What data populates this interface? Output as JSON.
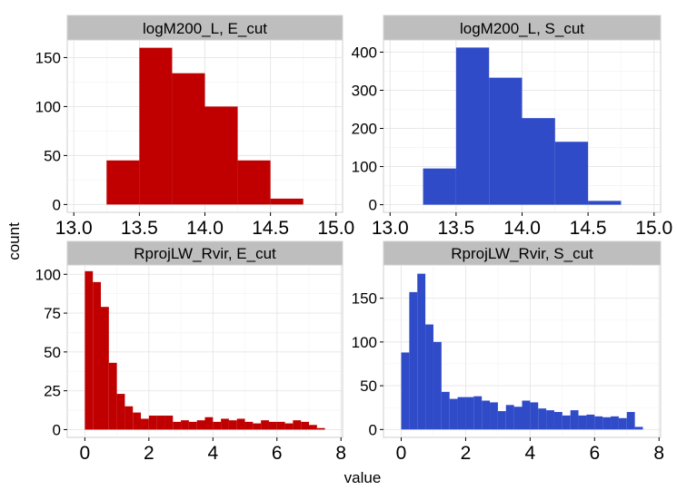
{
  "figure": {
    "xlabel": "value",
    "ylabel": "count"
  },
  "colors": {
    "E_cut": "#c00000",
    "S_cut": "#2f4bc8",
    "strip_fill": "#bebebe",
    "panel_bg": "#ffffff",
    "grid_major": "#e5e5e5",
    "grid_minor": "#f2f2f2"
  },
  "chart_data": [
    {
      "type": "bar",
      "title": "logM200_L, E_cut",
      "color_key": "E_cut",
      "binwidth": 0.25,
      "bins_start": [
        13.25,
        13.5,
        13.75,
        14.0,
        14.25,
        14.5
      ],
      "values": [
        45,
        160,
        134,
        100,
        45,
        6
      ],
      "xlim": [
        12.95,
        15.05
      ],
      "ylim": [
        -8,
        168
      ],
      "xticks": [
        13.0,
        13.5,
        14.0,
        14.5,
        15.0
      ],
      "xtick_labels": [
        "13.0",
        "13.5",
        "14.0",
        "14.5",
        "15.0"
      ],
      "yticks": [
        0,
        50,
        100,
        150
      ],
      "ytick_labels": [
        "0",
        "50",
        "100",
        "150"
      ]
    },
    {
      "type": "bar",
      "title": "logM200_L, S_cut",
      "color_key": "S_cut",
      "binwidth": 0.25,
      "bins_start": [
        13.25,
        13.5,
        13.75,
        14.0,
        14.25,
        14.5
      ],
      "values": [
        95,
        412,
        333,
        227,
        165,
        10
      ],
      "xlim": [
        12.95,
        15.05
      ],
      "ylim": [
        -20,
        432
      ],
      "xticks": [
        13.0,
        13.5,
        14.0,
        14.5,
        15.0
      ],
      "xtick_labels": [
        "13.0",
        "13.5",
        "14.0",
        "14.5",
        "15.0"
      ],
      "yticks": [
        0,
        100,
        200,
        300,
        400
      ],
      "ytick_labels": [
        "0",
        "100",
        "200",
        "300",
        "400"
      ]
    },
    {
      "type": "bar",
      "title": "RprojLW_Rvir, E_cut",
      "color_key": "E_cut",
      "binwidth": 0.25,
      "bins_start": [
        0.0,
        0.25,
        0.5,
        0.75,
        1.0,
        1.25,
        1.5,
        1.75,
        2.0,
        2.25,
        2.5,
        2.75,
        3.0,
        3.25,
        3.5,
        3.75,
        4.0,
        4.25,
        4.5,
        4.75,
        5.0,
        5.25,
        5.5,
        5.75,
        6.0,
        6.25,
        6.5,
        6.75,
        7.0,
        7.25
      ],
      "values": [
        102,
        95,
        79,
        43,
        23,
        15,
        11,
        7,
        9,
        9,
        9,
        5,
        6,
        5,
        6,
        8,
        5,
        7,
        6,
        7,
        5,
        4,
        6,
        5,
        5,
        4,
        6,
        5,
        3,
        1
      ],
      "xlim": [
        -0.55,
        8.05
      ],
      "ylim": [
        -5,
        106
      ],
      "xticks": [
        0,
        2,
        4,
        6,
        8
      ],
      "xtick_labels": [
        "0",
        "2",
        "4",
        "6",
        "8"
      ],
      "yticks": [
        0,
        25,
        50,
        75,
        100
      ],
      "ytick_labels": [
        "0",
        "25",
        "50",
        "75",
        "100"
      ]
    },
    {
      "type": "bar",
      "title": "RprojLW_Rvir, S_cut",
      "color_key": "S_cut",
      "binwidth": 0.25,
      "bins_start": [
        0.0,
        0.25,
        0.5,
        0.75,
        1.0,
        1.25,
        1.5,
        1.75,
        2.0,
        2.25,
        2.5,
        2.75,
        3.0,
        3.25,
        3.5,
        3.75,
        4.0,
        4.25,
        4.5,
        4.75,
        5.0,
        5.25,
        5.5,
        5.75,
        6.0,
        6.25,
        6.5,
        6.75,
        7.0,
        7.25
      ],
      "values": [
        88,
        157,
        178,
        120,
        100,
        43,
        35,
        37,
        37,
        38,
        33,
        31,
        21,
        28,
        26,
        33,
        31,
        24,
        22,
        20,
        16,
        22,
        16,
        17,
        15,
        14,
        15,
        13,
        20,
        3
      ],
      "xlim": [
        -0.55,
        8.05
      ],
      "ylim": [
        -9,
        188
      ],
      "xticks": [
        0,
        2,
        4,
        6,
        8
      ],
      "xtick_labels": [
        "0",
        "2",
        "4",
        "6",
        "8"
      ],
      "yticks": [
        0,
        50,
        100,
        150
      ],
      "ytick_labels": [
        "0",
        "50",
        "100",
        "150"
      ]
    }
  ]
}
